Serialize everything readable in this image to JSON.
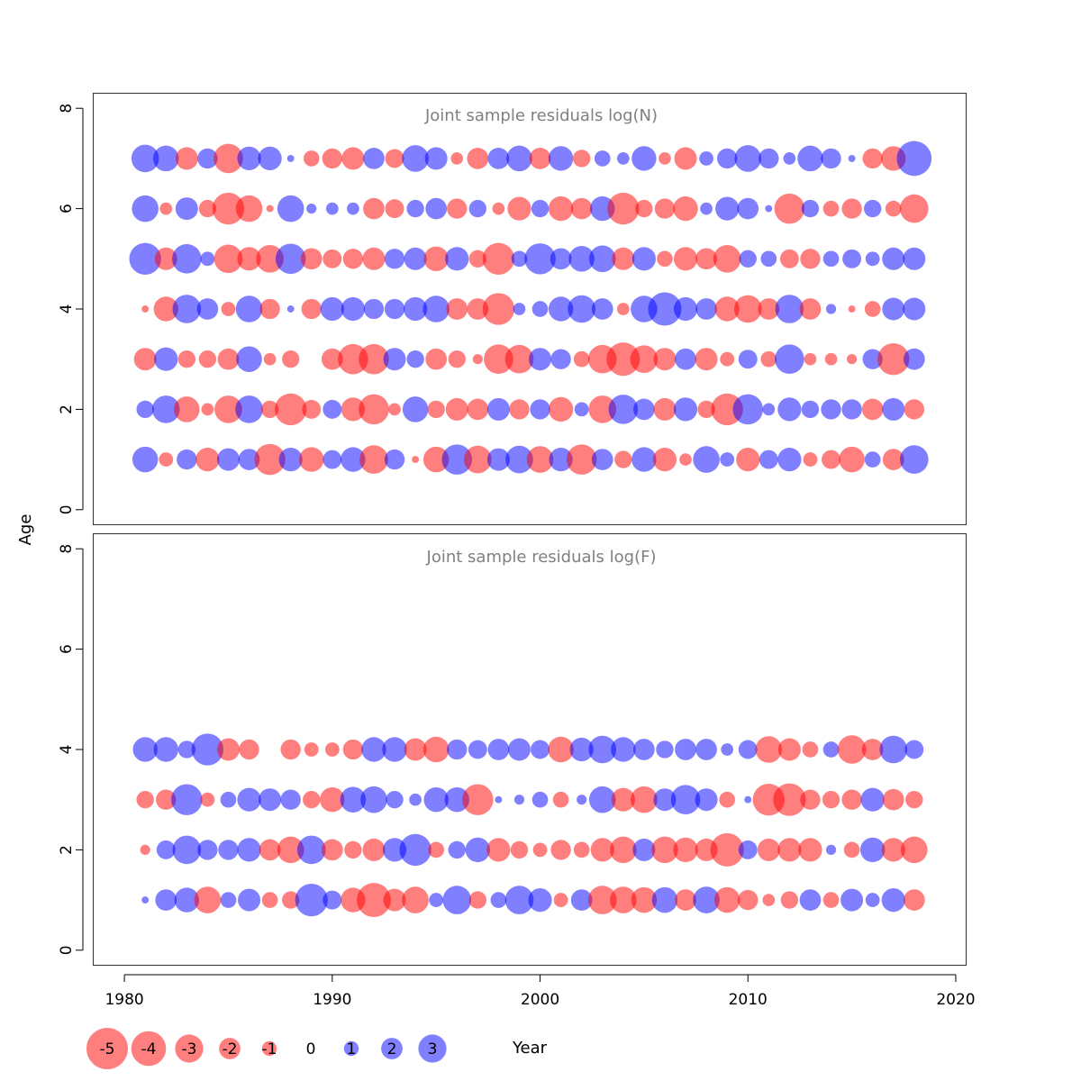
{
  "colors": {
    "negative": "#ff0000",
    "positive": "#0000ff",
    "bubble_opacity": 0.5,
    "frame": "#333333",
    "title_text": "#808080"
  },
  "chart_data": [
    {
      "type": "scatter",
      "title": "Joint sample residuals log(N)",
      "xlabel": "",
      "ylabel": "Age",
      "xlim": [
        1978.5,
        2020.5
      ],
      "ylim": [
        -0.3,
        8.3
      ],
      "yticks": [
        0,
        2,
        4,
        6,
        8
      ],
      "grid": false,
      "years": [
        1981,
        1982,
        1983,
        1984,
        1985,
        1986,
        1987,
        1988,
        1989,
        1990,
        1991,
        1992,
        1993,
        1994,
        1995,
        1996,
        1997,
        1998,
        1999,
        2000,
        2001,
        2002,
        2003,
        2004,
        2005,
        2006,
        2007,
        2008,
        2009,
        2010,
        2011,
        2012,
        2013,
        2014,
        2015,
        2016,
        2017,
        2018
      ],
      "rows": [
        {
          "age": 7,
          "residuals": [
            1.5,
            1.3,
            -1.0,
            0.8,
            -1.7,
            1.1,
            1.1,
            0.1,
            -0.5,
            -0.8,
            -1.0,
            0.9,
            -0.7,
            1.4,
            1.0,
            -0.3,
            -0.9,
            0.9,
            1.3,
            -0.9,
            1.2,
            -0.6,
            0.5,
            0.3,
            1.2,
            -0.3,
            -1.0,
            0.4,
            0.8,
            1.4,
            0.8,
            0.3,
            1.3,
            0.8,
            0.1,
            -0.8,
            -1.2,
            2.4
          ]
        },
        {
          "age": 6,
          "residuals": [
            1.4,
            -0.3,
            1.0,
            -0.6,
            -2.0,
            -1.4,
            -0.1,
            1.4,
            0.2,
            0.3,
            0.3,
            -0.9,
            -0.7,
            0.6,
            0.9,
            -0.8,
            0.6,
            -0.3,
            -1.1,
            0.6,
            -1.2,
            -0.9,
            1.2,
            -2.0,
            -0.6,
            -0.8,
            -1.2,
            0.3,
            1.1,
            0.9,
            0.1,
            -1.8,
            0.6,
            -0.5,
            -0.8,
            0.6,
            -0.5,
            -1.6
          ]
        },
        {
          "age": 5,
          "residuals": [
            2.0,
            -1.0,
            1.7,
            0.4,
            -1.6,
            -1.1,
            -1.5,
            1.8,
            -0.9,
            -0.7,
            -0.8,
            -1.0,
            0.8,
            1.0,
            -1.2,
            1.1,
            -0.6,
            -2.0,
            0.5,
            1.9,
            0.9,
            1.3,
            1.4,
            -1.0,
            1.1,
            -0.5,
            -1.1,
            -0.9,
            -1.5,
            0.6,
            0.5,
            -0.7,
            -0.8,
            0.5,
            0.7,
            0.4,
            1.0,
            1.0
          ]
        },
        {
          "age": 4,
          "residuals": [
            -0.1,
            -1.2,
            1.6,
            0.9,
            -0.4,
            1.4,
            -0.8,
            0.1,
            -0.8,
            1.1,
            1.1,
            0.8,
            0.8,
            1.1,
            1.4,
            -0.9,
            -0.9,
            -2.0,
            0.3,
            0.5,
            1.2,
            1.5,
            0.9,
            -0.3,
            1.4,
            2.2,
            1.1,
            0.9,
            -1.2,
            -1.5,
            -0.9,
            1.6,
            -0.9,
            0.2,
            -0.1,
            -0.5,
            1.0,
            1.0
          ]
        },
        {
          "age": 3,
          "residuals": [
            -1.0,
            1.1,
            -0.6,
            -0.6,
            -0.9,
            1.3,
            -0.3,
            -0.6,
            0.0,
            -0.9,
            -1.8,
            -1.8,
            1.0,
            0.6,
            -0.9,
            -0.6,
            -0.2,
            -1.7,
            -1.6,
            1.0,
            0.8,
            -0.5,
            -1.6,
            -2.2,
            -1.5,
            -1.0,
            0.9,
            -1.0,
            -0.4,
            0.7,
            -0.5,
            1.7,
            -0.3,
            -0.3,
            -0.2,
            0.8,
            -2.0,
            0.9
          ]
        },
        {
          "age": 2,
          "residuals": [
            0.6,
            1.5,
            -1.3,
            -0.3,
            -1.5,
            1.5,
            -0.6,
            -2.0,
            -0.7,
            0.7,
            -1.1,
            -1.8,
            -0.3,
            1.3,
            -0.6,
            -1.0,
            -0.9,
            1.0,
            -0.8,
            0.8,
            -1.2,
            0.4,
            -1.5,
            1.7,
            0.9,
            -1.0,
            1.1,
            -0.6,
            -2.0,
            1.8,
            0.3,
            1.1,
            0.6,
            0.8,
            0.8,
            -0.9,
            1.0,
            -0.8
          ]
        },
        {
          "age": 1,
          "residuals": [
            1.3,
            -0.4,
            0.8,
            -1.1,
            1.0,
            0.9,
            -1.9,
            1.1,
            -1.2,
            0.7,
            1.2,
            -1.6,
            0.8,
            -0.1,
            -1.3,
            1.8,
            -1.5,
            1.0,
            1.5,
            -1.4,
            1.1,
            -1.8,
            0.9,
            -0.6,
            1.2,
            -1.1,
            -0.3,
            1.4,
            0.4,
            -1.1,
            0.7,
            1.1,
            -0.4,
            -0.7,
            -1.3,
            0.5,
            -0.9,
            1.6
          ]
        }
      ]
    },
    {
      "type": "scatter",
      "title": "Joint sample residuals log(F)",
      "xlabel": "Year",
      "ylabel": "Age",
      "xlim": [
        1978.5,
        2020.5
      ],
      "ylim": [
        -0.3,
        8.3
      ],
      "xticks": [
        1980,
        1990,
        2000,
        2010,
        2020
      ],
      "yticks": [
        0,
        2,
        4,
        6,
        8
      ],
      "grid": false,
      "years": [
        1981,
        1982,
        1983,
        1984,
        1985,
        1986,
        1987,
        1988,
        1989,
        1990,
        1991,
        1992,
        1993,
        1994,
        1995,
        1996,
        1997,
        1998,
        1999,
        2000,
        2001,
        2002,
        2003,
        2004,
        2005,
        2006,
        2007,
        2008,
        2009,
        2010,
        2011,
        2012,
        2013,
        2014,
        2015,
        2016,
        2017,
        2018
      ],
      "rows": [
        {
          "age": 4,
          "residuals": [
            1.2,
            1.2,
            0.6,
            2.0,
            -1.0,
            -0.8,
            0.0,
            -0.8,
            -0.4,
            -0.4,
            -0.8,
            1.2,
            1.2,
            -1.0,
            -1.3,
            0.8,
            0.7,
            0.9,
            1.0,
            0.7,
            -1.3,
            1.1,
            1.5,
            1.2,
            0.9,
            0.6,
            0.9,
            0.9,
            0.3,
            0.7,
            -1.4,
            -1.0,
            -0.5,
            0.5,
            -1.6,
            -0.9,
            1.5,
            0.7
          ]
        },
        {
          "age": 3,
          "residuals": [
            -0.6,
            -0.8,
            1.9,
            -0.4,
            0.5,
            1.1,
            1.0,
            0.8,
            -0.6,
            -1.2,
            1.3,
            1.4,
            0.6,
            0.3,
            1.2,
            1.2,
            -1.9,
            0.1,
            0.2,
            0.5,
            -0.5,
            0.2,
            1.4,
            -1.1,
            -1.4,
            1.0,
            1.7,
            1.0,
            -0.5,
            0.1,
            -2.0,
            -2.1,
            -0.8,
            -0.6,
            -0.8,
            1.1,
            -0.9,
            -0.6
          ]
        },
        {
          "age": 2,
          "residuals": [
            -0.2,
            0.7,
            1.6,
            0.8,
            0.8,
            1.1,
            -0.9,
            -1.4,
            1.6,
            -0.9,
            -0.6,
            -1.0,
            1.1,
            2.0,
            -0.5,
            0.6,
            1.2,
            -1.1,
            -0.6,
            -0.4,
            -0.8,
            -0.5,
            -1.1,
            -1.4,
            1.0,
            -1.4,
            -1.2,
            -1.0,
            -2.2,
            0.7,
            -1.0,
            -1.1,
            -1.1,
            0.2,
            -0.5,
            1.2,
            -1.1,
            -1.4
          ]
        },
        {
          "age": 1,
          "residuals": [
            0.1,
            0.9,
            1.2,
            -1.4,
            0.5,
            1.0,
            -0.5,
            -0.6,
            2.1,
            0.7,
            -1.2,
            -2.3,
            -1.0,
            -1.4,
            0.4,
            1.6,
            -0.6,
            0.5,
            1.6,
            1.1,
            -0.4,
            0.9,
            -1.6,
            -1.4,
            -1.3,
            1.3,
            -0.9,
            1.4,
            -1.3,
            -0.8,
            -0.3,
            -0.6,
            0.9,
            -0.5,
            1.0,
            0.4,
            1.1,
            -0.9
          ]
        }
      ]
    }
  ],
  "legend": {
    "items": [
      {
        "label": "-5",
        "value": -5
      },
      {
        "label": "-4",
        "value": -4
      },
      {
        "label": "-3",
        "value": -3
      },
      {
        "label": "-2",
        "value": -2
      },
      {
        "label": "-1",
        "value": -1
      },
      {
        "label": "0",
        "value": 0
      },
      {
        "label": "1",
        "value": 1
      },
      {
        "label": "2",
        "value": 2
      },
      {
        "label": "3",
        "value": 3
      }
    ]
  },
  "labels": {
    "year_axis": "Year",
    "age_axis": "Age"
  }
}
